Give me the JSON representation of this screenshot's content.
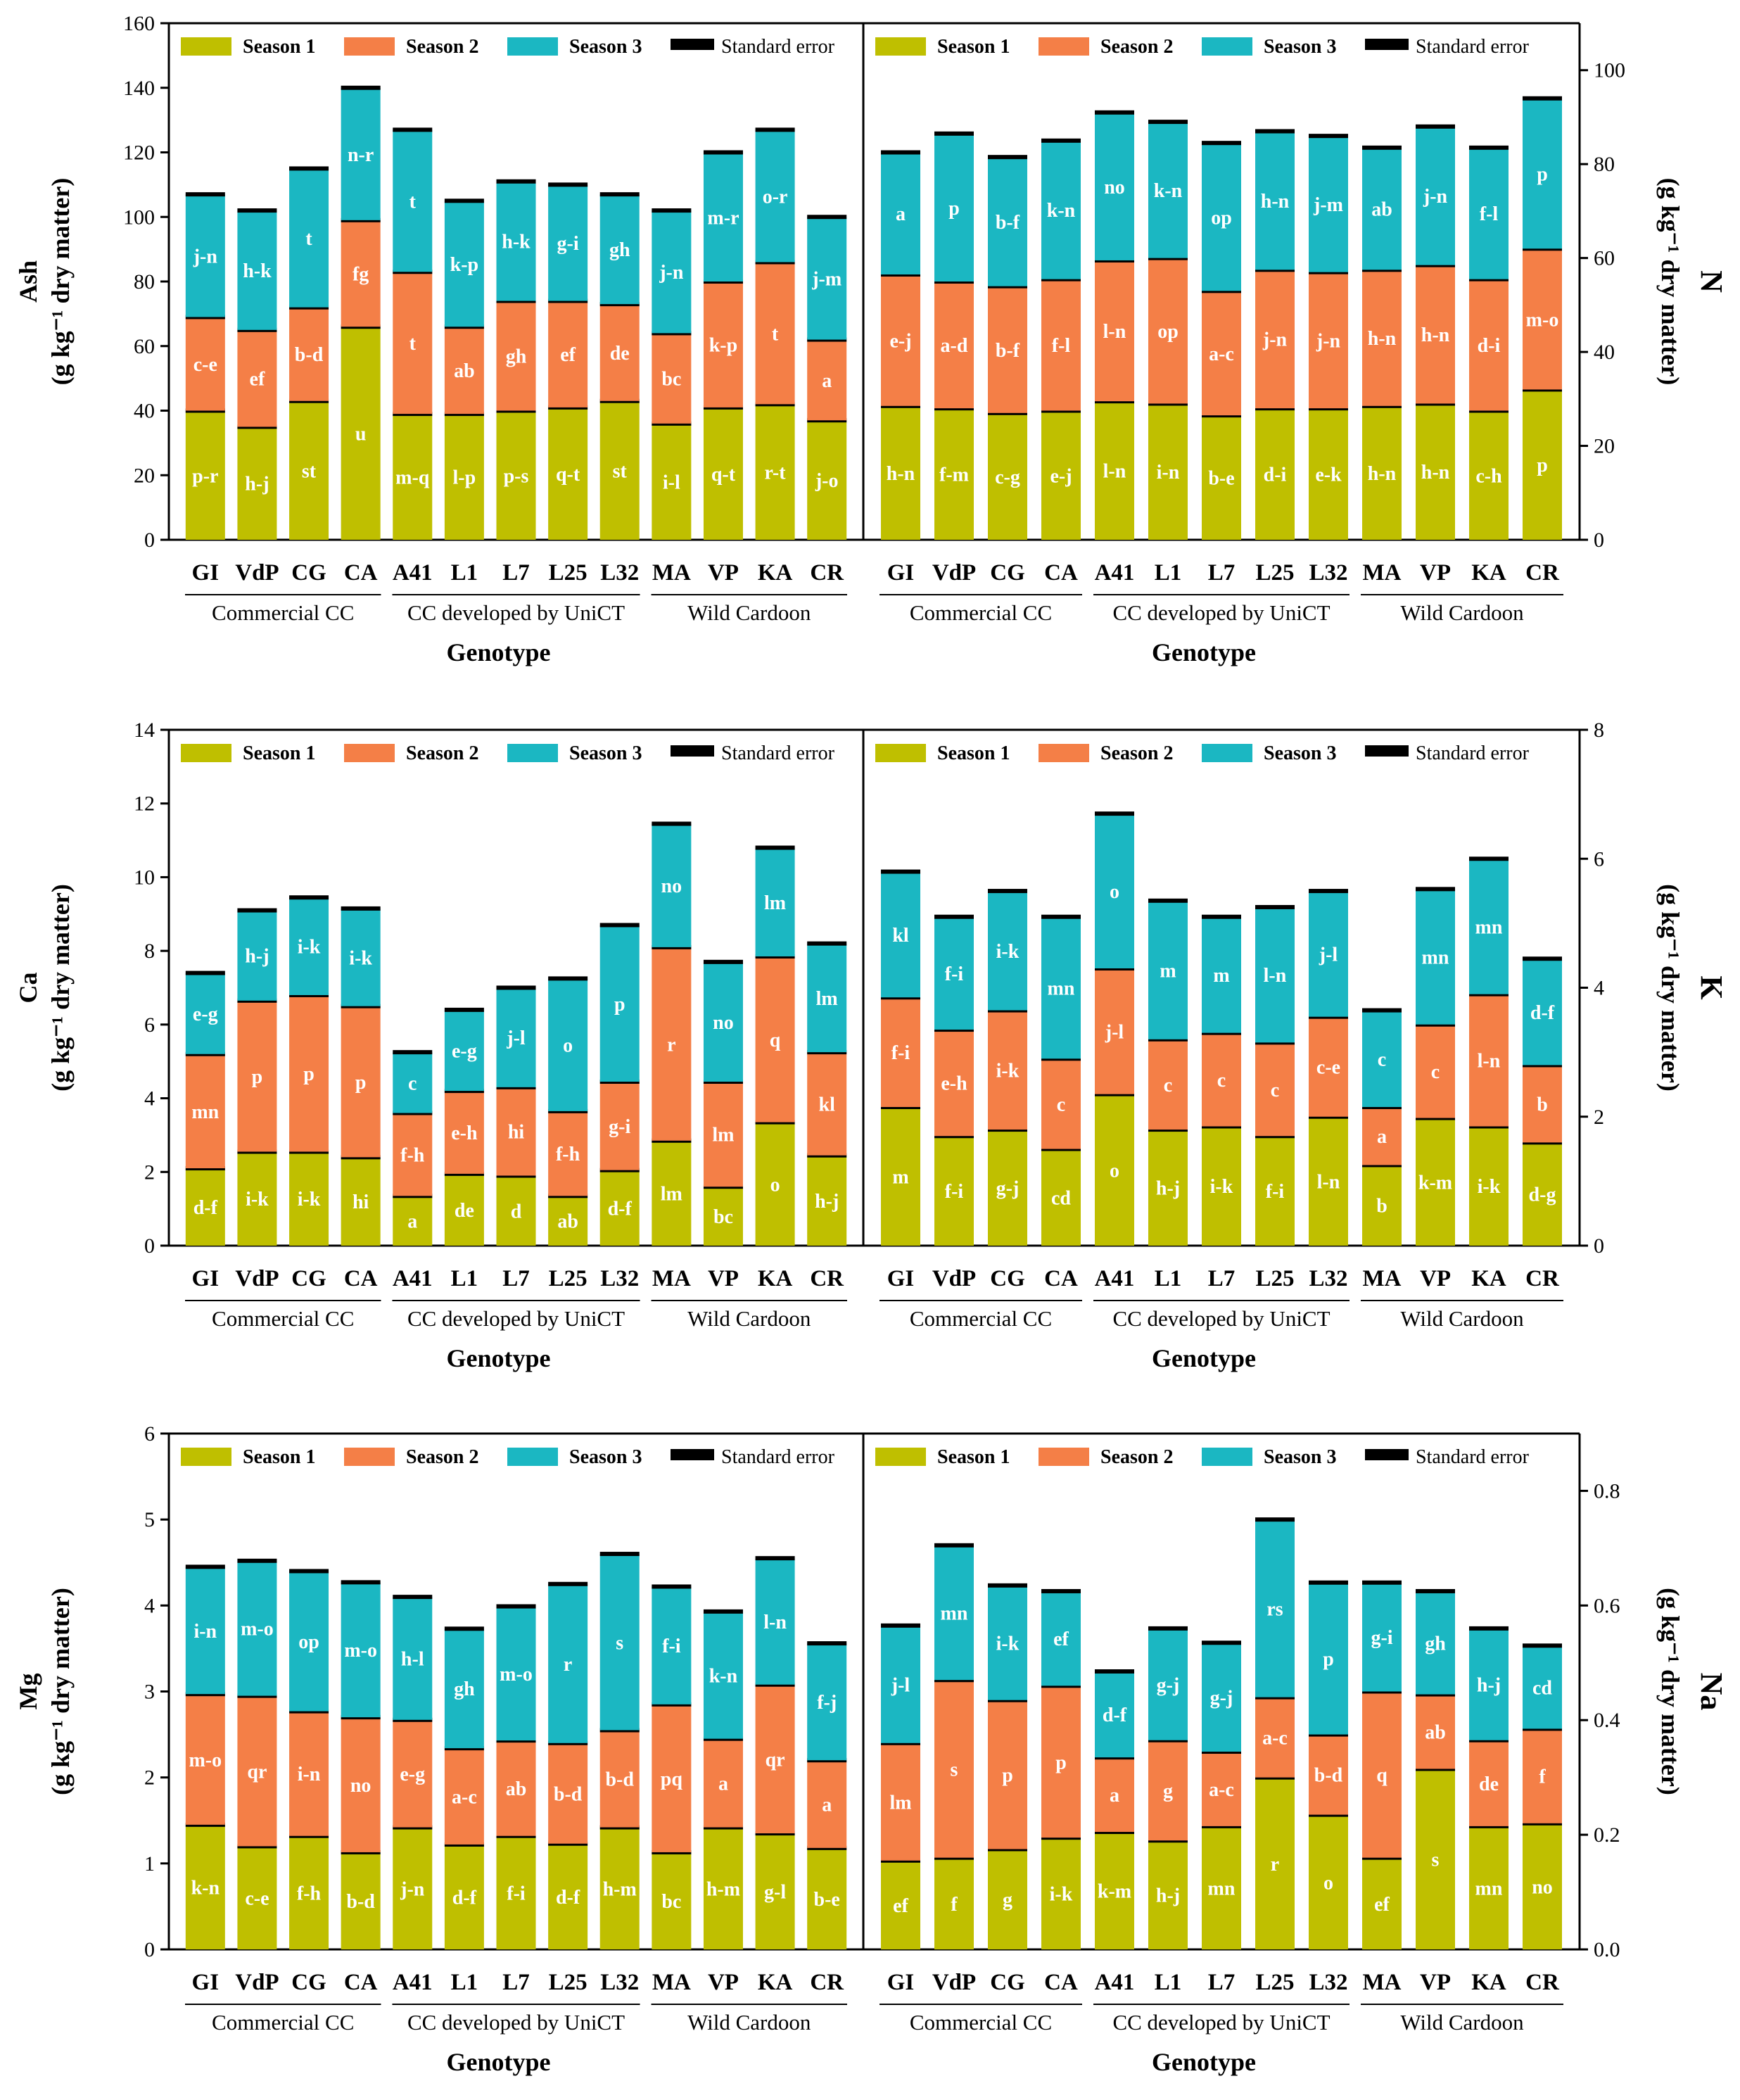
{
  "figure": {
    "legend": [
      {
        "label": "Season 1",
        "color": "#bfbf00",
        "bold": true
      },
      {
        "label": "Season 2",
        "color": "#f47f47",
        "bold": true
      },
      {
        "label": "Season 3",
        "color": "#1bb7c2",
        "bold": true
      },
      {
        "label": "Standard error",
        "color": "#000000",
        "bold": false
      }
    ],
    "categories": [
      "GI",
      "VdP",
      "CG",
      "CA",
      "A41",
      "L1",
      "L7",
      "L25",
      "L32",
      "MA",
      "VP",
      "KA",
      "CR"
    ],
    "groups": [
      {
        "label": "Commercial CC",
        "from": 0,
        "to": 3
      },
      {
        "label": "CC developed by UniCT",
        "from": 4,
        "to": 8
      },
      {
        "label": "Wild Cardoon",
        "from": 9,
        "to": 12
      }
    ],
    "xlabel": "Genotype"
  },
  "chart_data": [
    {
      "type": "bar",
      "stacked": true,
      "panel": "top-left",
      "title": "Ash",
      "ylabel_main": "Ash",
      "ylabel_sub": "(g kg⁻¹ dry matter)",
      "axis_side": "left",
      "ylim": [
        0,
        160
      ],
      "yticks": [
        0,
        20,
        40,
        60,
        80,
        100,
        120,
        140,
        160
      ],
      "series": [
        {
          "name": "Season 1",
          "values": [
            40,
            35,
            43,
            66,
            39,
            39,
            40,
            41,
            43,
            36,
            41,
            42,
            37
          ],
          "letters": [
            "p-r",
            "h-j",
            "st",
            "u",
            "m-q",
            "l-p",
            "p-s",
            "q-t",
            "st",
            "i-l",
            "q-t",
            "r-t",
            "j-o"
          ]
        },
        {
          "name": "Season 2",
          "values": [
            29,
            30,
            29,
            33,
            44,
            27,
            34,
            33,
            30,
            28,
            39,
            44,
            25
          ],
          "letters": [
            "c-e",
            "ef",
            "b-d",
            "fg",
            "t",
            "ab",
            "gh",
            "ef",
            "de",
            "bc",
            "k-p",
            "t",
            "a"
          ]
        },
        {
          "name": "Season 3",
          "values": [
            38,
            37,
            43,
            41,
            44,
            39,
            37,
            36,
            34,
            38,
            40,
            41,
            38
          ],
          "letters": [
            "j-n",
            "h-k",
            "t",
            "n-r",
            "t",
            "k-p",
            "h-k",
            "g-i",
            "gh",
            "j-n",
            "m-r",
            "o-r",
            "j-m"
          ]
        }
      ]
    },
    {
      "type": "bar",
      "stacked": true,
      "panel": "top-right",
      "title": "N",
      "ylabel_main": "N",
      "ylabel_sub": "(g kg⁻¹ dry matter)",
      "axis_side": "right",
      "ylim": [
        0,
        110
      ],
      "yticks": [
        0,
        20,
        40,
        60,
        80,
        100
      ],
      "series": [
        {
          "name": "Season 1",
          "values": [
            28.5,
            28,
            27,
            27.5,
            29.5,
            29,
            26.5,
            28,
            28,
            28.5,
            29,
            27.5,
            32
          ],
          "letters": [
            "h-n",
            "f-m",
            "c-g",
            "e-j",
            "l-n",
            "i-n",
            "b-e",
            "d-i",
            "e-k",
            "h-n",
            "h-n",
            "c-h",
            "p"
          ]
        },
        {
          "name": "Season 2",
          "values": [
            28,
            27,
            27,
            28,
            30,
            31,
            26.5,
            29.5,
            29,
            29,
            29.5,
            28,
            30
          ],
          "letters": [
            "e-j",
            "a-d",
            "b-f",
            "f-l",
            "l-n",
            "op",
            "a-c",
            "j-n",
            "j-n",
            "h-n",
            "h-n",
            "d-i",
            "m-o"
          ]
        },
        {
          "name": "Season 3",
          "values": [
            26,
            31.5,
            27.5,
            29.5,
            31.5,
            29,
            31.5,
            29.5,
            29,
            26,
            29.5,
            28,
            32
          ],
          "letters": [
            "a",
            "p",
            "b-f",
            "k-n",
            "no",
            "k-n",
            "op",
            "h-n",
            "j-m",
            "ab",
            "j-n",
            "f-l",
            "p"
          ]
        }
      ]
    },
    {
      "type": "bar",
      "stacked": true,
      "panel": "middle-left",
      "title": "Ca",
      "ylabel_main": "Ca",
      "ylabel_sub": "(g kg⁻¹ dry matter)",
      "axis_side": "left",
      "ylim": [
        0,
        14
      ],
      "yticks": [
        0,
        2,
        4,
        6,
        8,
        10,
        12,
        14
      ],
      "series": [
        {
          "name": "Season 1",
          "values": [
            2.1,
            2.55,
            2.55,
            2.4,
            1.35,
            1.95,
            1.9,
            1.35,
            2.05,
            2.85,
            1.6,
            3.35,
            2.45
          ],
          "letters": [
            "d-f",
            "i-k",
            "i-k",
            "hi",
            "a",
            "de",
            "d",
            "ab",
            "d-f",
            "lm",
            "bc",
            "o",
            "h-j"
          ]
        },
        {
          "name": "Season 2",
          "values": [
            3.1,
            4.1,
            4.25,
            4.1,
            2.25,
            2.25,
            2.4,
            2.3,
            2.4,
            5.25,
            2.85,
            4.5,
            2.8
          ],
          "letters": [
            "mn",
            "p",
            "p",
            "p",
            "f-h",
            "e-h",
            "hi",
            "f-h",
            "g-i",
            "r",
            "lm",
            "q",
            "kl"
          ]
        },
        {
          "name": "Season 3",
          "values": [
            2.2,
            2.45,
            2.65,
            2.65,
            1.65,
            2.2,
            2.7,
            3.6,
            4.25,
            3.35,
            3.25,
            2.95,
            2.95
          ],
          "letters": [
            "e-g",
            "h-j",
            "i-k",
            "i-k",
            "c",
            "e-g",
            "j-l",
            "o",
            "p",
            "no",
            "no",
            "lm",
            "lm"
          ]
        }
      ]
    },
    {
      "type": "bar",
      "stacked": true,
      "panel": "middle-right",
      "title": "K",
      "ylabel_main": "K",
      "ylabel_sub": "(g kg⁻¹ dry matter)",
      "axis_side": "right",
      "ylim": [
        0,
        8
      ],
      "yticks": [
        0,
        2,
        4,
        6,
        8
      ],
      "series": [
        {
          "name": "Season 1",
          "values": [
            2.15,
            1.7,
            1.8,
            1.5,
            2.35,
            1.8,
            1.85,
            1.7,
            2.0,
            1.25,
            1.98,
            1.85,
            1.6
          ],
          "letters": [
            "m",
            "f-i",
            "g-j",
            "cd",
            "o",
            "h-j",
            "i-k",
            "f-i",
            "l-n",
            "b",
            "k-m",
            "i-k",
            "d-g"
          ]
        },
        {
          "name": "Season 2",
          "values": [
            1.7,
            1.65,
            1.85,
            1.4,
            1.95,
            1.4,
            1.45,
            1.45,
            1.55,
            0.9,
            1.45,
            2.05,
            1.2
          ],
          "letters": [
            "f-i",
            "e-h",
            "i-k",
            "c",
            "j-l",
            "c",
            "c",
            "c",
            "c-e",
            "a",
            "c",
            "l-n",
            "b"
          ]
        },
        {
          "name": "Season 3",
          "values": [
            1.95,
            1.75,
            1.85,
            2.2,
            2.4,
            2.15,
            1.8,
            2.1,
            1.95,
            1.5,
            2.1,
            2.1,
            1.65
          ],
          "letters": [
            "kl",
            "f-i",
            "i-k",
            "mn",
            "o",
            "m",
            "m",
            "l-n",
            "j-l",
            "c",
            "mn",
            "mn",
            "d-f"
          ]
        }
      ]
    },
    {
      "type": "bar",
      "stacked": true,
      "panel": "bottom-left",
      "title": "Mg",
      "ylabel_main": "Mg",
      "ylabel_sub": "(g kg⁻¹ dry matter)",
      "axis_side": "left",
      "ylim": [
        0,
        6
      ],
      "yticks": [
        0,
        1,
        2,
        3,
        4,
        5,
        6
      ],
      "series": [
        {
          "name": "Season 1",
          "values": [
            1.45,
            1.2,
            1.32,
            1.13,
            1.42,
            1.22,
            1.32,
            1.23,
            1.42,
            1.13,
            1.42,
            1.35,
            1.18
          ],
          "letters": [
            "k-n",
            "c-e",
            "f-h",
            "b-d",
            "j-n",
            "d-f",
            "f-i",
            "d-f",
            "h-m",
            "bc",
            "h-m",
            "g-l",
            "b-e"
          ]
        },
        {
          "name": "Season 2",
          "values": [
            1.52,
            1.75,
            1.45,
            1.57,
            1.25,
            1.12,
            1.11,
            1.17,
            1.13,
            1.72,
            1.03,
            1.73,
            1.02
          ],
          "letters": [
            "m-o",
            "qr",
            "i-n",
            "no",
            "e-g",
            "a-c",
            "ab",
            "b-d",
            "b-d",
            "pq",
            "a",
            "qr",
            "a"
          ]
        },
        {
          "name": "Season 3",
          "values": [
            1.48,
            1.57,
            1.63,
            1.57,
            1.43,
            1.39,
            1.56,
            1.85,
            2.05,
            1.37,
            1.48,
            1.47,
            1.36
          ],
          "letters": [
            "i-n",
            "m-o",
            "op",
            "m-o",
            "h-l",
            "gh",
            "m-o",
            "r",
            "s",
            "f-i",
            "k-n",
            "l-n",
            "f-j"
          ]
        }
      ]
    },
    {
      "type": "bar",
      "stacked": true,
      "panel": "bottom-right",
      "title": "Na",
      "ylabel_main": "Na",
      "ylabel_sub": "(g kg⁻¹ dry matter)",
      "axis_side": "right",
      "ylim": [
        0,
        0.9
      ],
      "yticks": [
        0.0,
        0.2,
        0.4,
        0.6,
        0.8
      ],
      "series": [
        {
          "name": "Season 1",
          "values": [
            0.155,
            0.16,
            0.175,
            0.195,
            0.205,
            0.19,
            0.215,
            0.3,
            0.235,
            0.16,
            0.315,
            0.215,
            0.22
          ],
          "letters": [
            "ef",
            "f",
            "g",
            "i-k",
            "k-m",
            "h-j",
            "mn",
            "r",
            "o",
            "ef",
            "s",
            "mn",
            "no"
          ]
        },
        {
          "name": "Season 2",
          "values": [
            0.205,
            0.31,
            0.26,
            0.265,
            0.13,
            0.175,
            0.13,
            0.14,
            0.14,
            0.29,
            0.13,
            0.15,
            0.165
          ],
          "letters": [
            "lm",
            "s",
            "p",
            "p",
            "a",
            "g",
            "a-c",
            "a-c",
            "b-d",
            "q",
            "ab",
            "de",
            "f"
          ]
        },
        {
          "name": "Season 3",
          "values": [
            0.205,
            0.235,
            0.2,
            0.165,
            0.15,
            0.195,
            0.19,
            0.31,
            0.265,
            0.19,
            0.18,
            0.195,
            0.145
          ],
          "letters": [
            "j-l",
            "mn",
            "i-k",
            "ef",
            "d-f",
            "g-j",
            "g-j",
            "rs",
            "p",
            "g-i",
            "gh",
            "h-j",
            "cd"
          ]
        }
      ]
    }
  ]
}
